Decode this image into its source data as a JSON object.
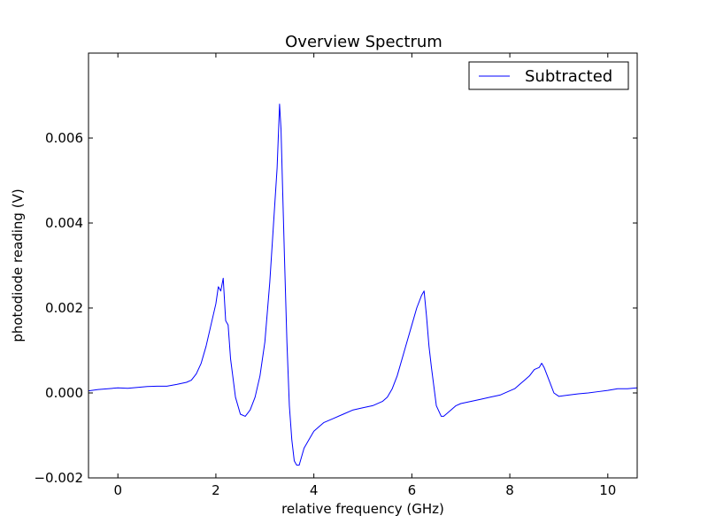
{
  "chart_data": {
    "type": "line",
    "title": "Overview Spectrum",
    "xlabel": "relative frequency (GHz)",
    "ylabel": "photodiode reading (V)",
    "xlim": [
      -0.6,
      10.6
    ],
    "ylim": [
      -0.002,
      0.008
    ],
    "x_ticks": [
      0,
      2,
      4,
      6,
      8,
      10
    ],
    "x_tick_labels": [
      "0",
      "2",
      "4",
      "6",
      "8",
      "10"
    ],
    "y_ticks": [
      -0.002,
      0.0,
      0.002,
      0.004,
      0.006
    ],
    "y_tick_labels": [
      "−0.002",
      "0.000",
      "0.002",
      "0.004",
      "0.006"
    ],
    "grid": false,
    "legend_position": "top-right",
    "series": [
      {
        "name": "Subtracted",
        "color": "#0000ff",
        "x": [
          -0.6,
          -0.4,
          -0.2,
          0.0,
          0.2,
          0.4,
          0.6,
          0.8,
          1.0,
          1.2,
          1.4,
          1.5,
          1.6,
          1.7,
          1.8,
          1.9,
          2.0,
          2.05,
          2.1,
          2.15,
          2.2,
          2.25,
          2.3,
          2.4,
          2.5,
          2.6,
          2.7,
          2.8,
          2.9,
          3.0,
          3.1,
          3.2,
          3.25,
          3.3,
          3.33,
          3.36,
          3.4,
          3.45,
          3.5,
          3.55,
          3.6,
          3.65,
          3.7,
          3.75,
          3.8,
          3.9,
          4.0,
          4.1,
          4.2,
          4.4,
          4.6,
          4.8,
          5.0,
          5.2,
          5.4,
          5.5,
          5.6,
          5.7,
          5.8,
          5.9,
          6.0,
          6.1,
          6.2,
          6.25,
          6.3,
          6.35,
          6.4,
          6.5,
          6.6,
          6.65,
          6.7,
          6.8,
          6.9,
          7.0,
          7.2,
          7.4,
          7.6,
          7.8,
          8.0,
          8.1,
          8.2,
          8.3,
          8.4,
          8.5,
          8.6,
          8.65,
          8.7,
          8.8,
          8.9,
          9.0,
          9.2,
          9.4,
          9.6,
          9.8,
          10.0,
          10.2,
          10.4,
          10.6
        ],
        "y": [
          5e-05,
          8e-05,
          0.0001,
          0.00012,
          0.00011,
          0.00013,
          0.00015,
          0.00016,
          0.00016,
          0.0002,
          0.00025,
          0.0003,
          0.00045,
          0.0007,
          0.0011,
          0.0016,
          0.0021,
          0.0025,
          0.0024,
          0.0027,
          0.0017,
          0.0016,
          0.0008,
          -0.0001,
          -0.0005,
          -0.00055,
          -0.0004,
          -0.0001,
          0.0004,
          0.0012,
          0.0026,
          0.0044,
          0.0053,
          0.0068,
          0.0062,
          0.0049,
          0.0032,
          0.0012,
          -0.0003,
          -0.0011,
          -0.0016,
          -0.0017,
          -0.0017,
          -0.0015,
          -0.0013,
          -0.0011,
          -0.0009,
          -0.0008,
          -0.0007,
          -0.0006,
          -0.0005,
          -0.0004,
          -0.00035,
          -0.0003,
          -0.0002,
          -0.0001,
          0.0001,
          0.0004,
          0.0008,
          0.0012,
          0.0016,
          0.002,
          0.0023,
          0.0024,
          0.0018,
          0.0011,
          0.0006,
          -0.0003,
          -0.00055,
          -0.00055,
          -0.0005,
          -0.0004,
          -0.0003,
          -0.00025,
          -0.0002,
          -0.00015,
          -0.0001,
          -5e-05,
          5e-05,
          0.0001,
          0.0002,
          0.0003,
          0.0004,
          0.00055,
          0.0006,
          0.0007,
          0.0006,
          0.0003,
          0.0,
          -8e-05,
          -5e-05,
          -2e-05,
          0.0,
          3e-05,
          6e-05,
          0.0001,
          0.0001,
          0.00012
        ]
      }
    ]
  }
}
